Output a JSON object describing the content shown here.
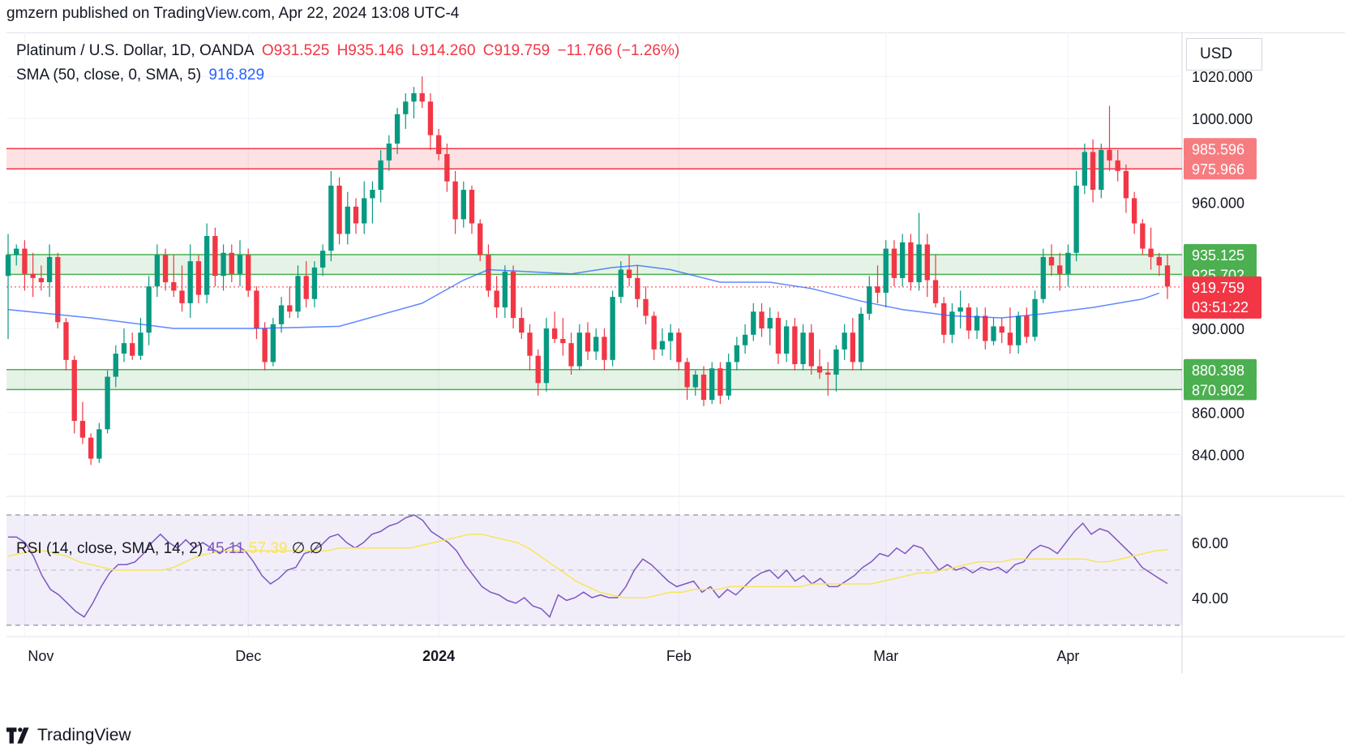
{
  "header": {
    "published_text": "gmzern published on TradingView.com, Apr 22, 2024 13:08 UTC-4"
  },
  "legend": {
    "symbol": "Platinum / U.S. Dollar, 1D, OANDA",
    "open": "O931.525",
    "high": "H935.146",
    "low": "L914.260",
    "close": "C919.759",
    "change": "−11.766 (−1.26%)",
    "sma_label": "SMA (50, close, 0, SMA, 5)",
    "sma_value": "916.829"
  },
  "rsi_legend": {
    "label": "RSI (14, close, SMA, 14, 2)",
    "value": "45.11",
    "ma_value": "57.39",
    "extra": "∅ ∅"
  },
  "currency": "USD",
  "footer": {
    "brand": "TradingView"
  },
  "chart_data": {
    "type": "candlestick",
    "price_axis": {
      "ticks": [
        1020,
        1000,
        960,
        900,
        860,
        840
      ],
      "tick_labels": [
        "1020.000",
        "1000.000",
        "960.000",
        "900.000",
        "860.000",
        "840.000"
      ]
    },
    "zones": [
      {
        "kind": "resistance",
        "top": 985.596,
        "bottom": 975.966,
        "top_label": "985.596",
        "bottom_label": "975.966",
        "color": "#f23645"
      },
      {
        "kind": "support",
        "top": 935.125,
        "bottom": 925.702,
        "top_label": "935.125",
        "bottom_label": "925.702",
        "color": "#4caf50"
      },
      {
        "kind": "support",
        "top": 880.398,
        "bottom": 870.902,
        "top_label": "880.398",
        "bottom_label": "870.902",
        "color": "#4caf50"
      }
    ],
    "last_price": {
      "value": 919.759,
      "label": "919.759",
      "countdown": "03:51:22",
      "color": "#f23645"
    },
    "time_axis": {
      "labels": [
        "Nov",
        "Dec",
        "2024",
        "Feb",
        "Mar",
        "Apr"
      ]
    },
    "candles": [
      [
        925,
        945,
        895,
        935
      ],
      [
        935,
        940,
        930,
        938
      ],
      [
        938,
        942,
        918,
        926
      ],
      [
        926,
        936,
        915,
        924
      ],
      [
        924,
        930,
        918,
        922
      ],
      [
        922,
        940,
        915,
        934
      ],
      [
        934,
        936,
        900,
        903
      ],
      [
        903,
        905,
        880,
        885
      ],
      [
        885,
        887,
        850,
        856
      ],
      [
        856,
        865,
        845,
        848
      ],
      [
        848,
        850,
        835,
        838
      ],
      [
        838,
        855,
        836,
        852
      ],
      [
        852,
        880,
        850,
        877
      ],
      [
        877,
        892,
        872,
        888
      ],
      [
        888,
        900,
        884,
        893
      ],
      [
        893,
        898,
        885,
        887
      ],
      [
        887,
        905,
        885,
        898
      ],
      [
        898,
        925,
        892,
        920
      ],
      [
        920,
        940,
        915,
        935
      ],
      [
        935,
        938,
        918,
        922
      ],
      [
        922,
        935,
        915,
        918
      ],
      [
        918,
        930,
        908,
        912
      ],
      [
        912,
        940,
        905,
        932
      ],
      [
        932,
        935,
        912,
        916
      ],
      [
        916,
        950,
        912,
        944
      ],
      [
        944,
        948,
        920,
        925
      ],
      [
        925,
        940,
        918,
        936
      ],
      [
        936,
        940,
        922,
        926
      ],
      [
        926,
        942,
        920,
        935
      ],
      [
        935,
        938,
        915,
        918
      ],
      [
        918,
        920,
        895,
        900
      ],
      [
        900,
        903,
        880,
        884
      ],
      [
        884,
        905,
        882,
        902
      ],
      [
        902,
        915,
        898,
        911
      ],
      [
        911,
        920,
        905,
        908
      ],
      [
        908,
        930,
        905,
        925
      ],
      [
        925,
        932,
        910,
        914
      ],
      [
        914,
        932,
        910,
        929
      ],
      [
        929,
        940,
        925,
        937
      ],
      [
        937,
        975,
        932,
        968
      ],
      [
        968,
        972,
        940,
        945
      ],
      [
        945,
        965,
        940,
        958
      ],
      [
        958,
        962,
        945,
        950
      ],
      [
        950,
        970,
        945,
        962
      ],
      [
        962,
        970,
        950,
        966
      ],
      [
        966,
        985,
        960,
        980
      ],
      [
        980,
        992,
        975,
        988
      ],
      [
        988,
        1005,
        983,
        1002
      ],
      [
        1002,
        1012,
        995,
        1008
      ],
      [
        1008,
        1015,
        1000,
        1012
      ],
      [
        1012,
        1020,
        1005,
        1008
      ],
      [
        1008,
        1012,
        985,
        992
      ],
      [
        992,
        995,
        980,
        983
      ],
      [
        983,
        988,
        965,
        970
      ],
      [
        970,
        975,
        945,
        952
      ],
      [
        952,
        970,
        948,
        966
      ],
      [
        966,
        968,
        945,
        950
      ],
      [
        950,
        952,
        932,
        935
      ],
      [
        935,
        940,
        915,
        918
      ],
      [
        918,
        925,
        905,
        910
      ],
      [
        910,
        930,
        905,
        927
      ],
      [
        927,
        930,
        900,
        905
      ],
      [
        905,
        910,
        895,
        898
      ],
      [
        898,
        902,
        880,
        887
      ],
      [
        887,
        890,
        868,
        874
      ],
      [
        874,
        905,
        870,
        900
      ],
      [
        900,
        908,
        893,
        895
      ],
      [
        895,
        905,
        887,
        893
      ],
      [
        893,
        898,
        878,
        882
      ],
      [
        882,
        902,
        880,
        898
      ],
      [
        898,
        903,
        885,
        889
      ],
      [
        889,
        900,
        885,
        896
      ],
      [
        896,
        900,
        880,
        885
      ],
      [
        885,
        918,
        882,
        915
      ],
      [
        915,
        932,
        912,
        928
      ],
      [
        928,
        935,
        920,
        924
      ],
      [
        924,
        930,
        910,
        914
      ],
      [
        914,
        920,
        902,
        906
      ],
      [
        906,
        908,
        885,
        890
      ],
      [
        890,
        900,
        887,
        894
      ],
      [
        894,
        902,
        885,
        898
      ],
      [
        898,
        900,
        880,
        884
      ],
      [
        884,
        886,
        866,
        872
      ],
      [
        872,
        880,
        868,
        878
      ],
      [
        878,
        882,
        863,
        866
      ],
      [
        866,
        884,
        864,
        881
      ],
      [
        881,
        884,
        864,
        868
      ],
      [
        868,
        888,
        866,
        884
      ],
      [
        884,
        896,
        880,
        892
      ],
      [
        892,
        902,
        888,
        897
      ],
      [
        897,
        912,
        894,
        908
      ],
      [
        908,
        912,
        896,
        900
      ],
      [
        900,
        910,
        892,
        905
      ],
      [
        905,
        908,
        883,
        888
      ],
      [
        888,
        904,
        884,
        901
      ],
      [
        901,
        905,
        880,
        883
      ],
      [
        883,
        902,
        880,
        898
      ],
      [
        898,
        902,
        878,
        882
      ],
      [
        882,
        890,
        876,
        879
      ],
      [
        879,
        884,
        868,
        878
      ],
      [
        878,
        892,
        870,
        890
      ],
      [
        890,
        902,
        885,
        898
      ],
      [
        898,
        905,
        880,
        884
      ],
      [
        884,
        910,
        880,
        907
      ],
      [
        907,
        925,
        904,
        920
      ],
      [
        920,
        930,
        912,
        917
      ],
      [
        917,
        942,
        910,
        938
      ],
      [
        938,
        942,
        920,
        924
      ],
      [
        924,
        945,
        920,
        941
      ],
      [
        941,
        945,
        918,
        922
      ],
      [
        922,
        955,
        918,
        940
      ],
      [
        940,
        945,
        915,
        923
      ],
      [
        923,
        935,
        910,
        912
      ],
      [
        912,
        915,
        893,
        897
      ],
      [
        897,
        912,
        893,
        908
      ],
      [
        908,
        918,
        900,
        910
      ],
      [
        910,
        912,
        895,
        899
      ],
      [
        899,
        910,
        895,
        906
      ],
      [
        906,
        910,
        890,
        894
      ],
      [
        894,
        905,
        892,
        901
      ],
      [
        901,
        905,
        893,
        898
      ],
      [
        898,
        910,
        888,
        892
      ],
      [
        892,
        908,
        888,
        906
      ],
      [
        906,
        910,
        893,
        896
      ],
      [
        896,
        918,
        894,
        914
      ],
      [
        914,
        938,
        912,
        934
      ],
      [
        934,
        940,
        925,
        930
      ],
      [
        930,
        936,
        918,
        926
      ],
      [
        926,
        940,
        920,
        936
      ],
      [
        936,
        975,
        932,
        968
      ],
      [
        968,
        988,
        964,
        984
      ],
      [
        984,
        990,
        960,
        966
      ],
      [
        966,
        988,
        962,
        985
      ],
      [
        985,
        1006,
        975,
        980
      ],
      [
        980,
        985,
        970,
        975
      ],
      [
        975,
        978,
        955,
        962
      ],
      [
        962,
        965,
        945,
        950
      ],
      [
        950,
        952,
        935,
        938
      ],
      [
        938,
        948,
        928,
        934
      ],
      [
        934,
        936,
        925,
        930
      ],
      [
        930,
        935,
        914,
        920
      ]
    ],
    "sma": [
      [
        0,
        909
      ],
      [
        10,
        905
      ],
      [
        20,
        900
      ],
      [
        30,
        900
      ],
      [
        40,
        901
      ],
      [
        50,
        912
      ],
      [
        55,
        923
      ],
      [
        58,
        928
      ],
      [
        63,
        927
      ],
      [
        68,
        926
      ],
      [
        73,
        929
      ],
      [
        76,
        930
      ],
      [
        80,
        928
      ],
      [
        86,
        922
      ],
      [
        92,
        922
      ],
      [
        97,
        919
      ],
      [
        103,
        913
      ],
      [
        108,
        909
      ],
      [
        114,
        906
      ],
      [
        120,
        905
      ],
      [
        125,
        907
      ],
      [
        131,
        910
      ],
      [
        137,
        914
      ],
      [
        139,
        916.829
      ]
    ],
    "rsi": {
      "ticks": [
        60,
        40
      ],
      "tick_labels": [
        "60.00",
        "40.00"
      ],
      "upper": 70,
      "lower": 30,
      "values": [
        62,
        62,
        60,
        55,
        48,
        43,
        41,
        38,
        35,
        33,
        38,
        44,
        49,
        52,
        52,
        53,
        56,
        60,
        63,
        60,
        58,
        61,
        58,
        60,
        58,
        56,
        58,
        59,
        57,
        53,
        48,
        45,
        47,
        50,
        51,
        56,
        57,
        59,
        62,
        63,
        60,
        58,
        60,
        63,
        64,
        66,
        67,
        69,
        70,
        68,
        64,
        62,
        60,
        57,
        52,
        48,
        44,
        42,
        41,
        39,
        38,
        40,
        37,
        36,
        33,
        41,
        39,
        40,
        42,
        40,
        41,
        40,
        40,
        44,
        50,
        54,
        52,
        49,
        46,
        44,
        45,
        46,
        42,
        44,
        40,
        43,
        41,
        44,
        47,
        49,
        50,
        47,
        50,
        46,
        48,
        45,
        47,
        44,
        44,
        46,
        48,
        51,
        53,
        56,
        55,
        58,
        56,
        59,
        58,
        54,
        50,
        52,
        50,
        51,
        49,
        51,
        50,
        51,
        49,
        52,
        53,
        57,
        59,
        58,
        56,
        60,
        64,
        67,
        63,
        65,
        64,
        61,
        58,
        55,
        51,
        49,
        47,
        45.11
      ],
      "ma_values": [
        55,
        56,
        57,
        57,
        56,
        55,
        53,
        52,
        51,
        50,
        50,
        50,
        50,
        50,
        51,
        53,
        55,
        56,
        57,
        57,
        57,
        57,
        57,
        57,
        57,
        57,
        57,
        57,
        58,
        58,
        58,
        58,
        58,
        58,
        58,
        59,
        60,
        61,
        62,
        63,
        63,
        62,
        61,
        60,
        58,
        55,
        52,
        49,
        46,
        44,
        42,
        41,
        40,
        40,
        40,
        41,
        42,
        42,
        43,
        43,
        43,
        44,
        44,
        44,
        44,
        44,
        44,
        44,
        45,
        45,
        45,
        45,
        45,
        45,
        46,
        47,
        48,
        49,
        49,
        50,
        51,
        52,
        53,
        53,
        53,
        54,
        54,
        54,
        54,
        54,
        54,
        54,
        53,
        53,
        54,
        55,
        56,
        57,
        57.39
      ]
    }
  }
}
